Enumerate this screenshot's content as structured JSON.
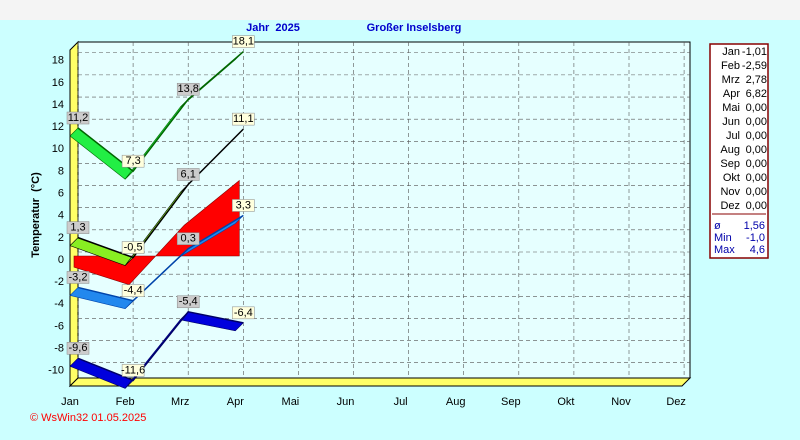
{
  "chart_data": {
    "type": "ribbon",
    "title": "Jahr  2025",
    "subtitle": "Großer Inselsberg",
    "y_label": "Temperatur  (°C)",
    "footer": "© WsWin32  01.05.2025",
    "categories": [
      "Jan",
      "Feb",
      "Mrz",
      "Apr",
      "Mai",
      "Jun",
      "Jul",
      "Aug",
      "Sep",
      "Okt",
      "Nov",
      "Dez"
    ],
    "ylim": [
      -11,
      19
    ],
    "yticks": [
      -10,
      -8,
      -6,
      -4,
      -2,
      0,
      2,
      4,
      6,
      8,
      10,
      12,
      14,
      16,
      18
    ],
    "grid": true,
    "series": [
      {
        "kind": "area",
        "color": "#ff0000",
        "values": [
          -1.01,
          -2.59,
          2.78,
          6.82,
          null,
          null,
          null,
          null,
          null,
          null,
          null,
          null
        ]
      },
      {
        "kind": "ribbon",
        "color": "#22ee44",
        "line": "#006600",
        "values": [
          11.2,
          7.3,
          13.8,
          18.1,
          null,
          null,
          null,
          null,
          null,
          null,
          null,
          null
        ],
        "value_labels": [
          "11,2",
          "7,3",
          "13,8",
          "18,1",
          null,
          null,
          null,
          null,
          null,
          null,
          null,
          null
        ]
      },
      {
        "kind": "ribbon",
        "color": "#88ee22",
        "line": "#000000",
        "values": [
          1.3,
          -0.5,
          6.1,
          11.1,
          null,
          null,
          null,
          null,
          null,
          null,
          null,
          null
        ],
        "value_labels": [
          "1,3",
          "-0,5",
          "6,1",
          "11,1",
          null,
          null,
          null,
          null,
          null,
          null,
          null,
          null
        ]
      },
      {
        "kind": "ribbon",
        "color": "#2288ee",
        "line": "#0044aa",
        "values": [
          -3.2,
          -4.4,
          0.3,
          3.3,
          null,
          null,
          null,
          null,
          null,
          null,
          null,
          null
        ],
        "value_labels": [
          "-3,2",
          "-4,4",
          "0,3",
          "3,3",
          null,
          null,
          null,
          null,
          null,
          null,
          null,
          null
        ]
      },
      {
        "kind": "ribbon",
        "color": "#0000dd",
        "line": "#000066",
        "values": [
          -9.6,
          -11.6,
          -5.4,
          -6.4,
          null,
          null,
          null,
          null,
          null,
          null,
          null,
          null
        ],
        "value_labels": [
          "-9,6",
          "-11,6",
          "-5,4",
          "-6,4",
          null,
          null,
          null,
          null,
          null,
          null,
          null,
          null
        ]
      }
    ],
    "monthly_means": [
      "-1,01",
      "-2,59",
      "2,78",
      "6,82",
      "0,00",
      "0,00",
      "0,00",
      "0,00",
      "0,00",
      "0,00",
      "0,00",
      "0,00"
    ],
    "stats": [
      {
        "label": "ø",
        "value": "1,56"
      },
      {
        "label": "Min",
        "value": "-1,0"
      },
      {
        "label": "Max",
        "value": "4,6"
      }
    ]
  }
}
